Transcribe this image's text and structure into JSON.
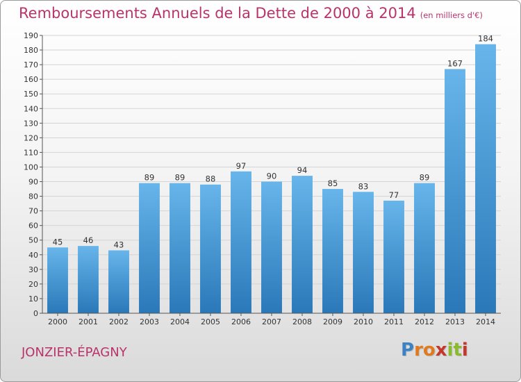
{
  "title": "Remboursements Annuels de la Dette de 2000 à 2014",
  "subtitle": "(en milliers d'€)",
  "town": "JONZIER-ÉPAGNY",
  "brand": {
    "letters": [
      "P",
      "r",
      "o",
      "x",
      "i",
      "t",
      "i"
    ],
    "colors": [
      "#3d83c4",
      "#e07a1f",
      "#e07a1f",
      "#c4372a",
      "#8bbb2a",
      "#8bbb2a",
      "#c4372a"
    ]
  },
  "colors": {
    "title": "#b8336a",
    "bar_top": "#67b5ea",
    "bar_bottom": "#2a78b8",
    "grid": "#d4d4d4"
  },
  "chart_data": {
    "type": "bar",
    "categories": [
      "2000",
      "2001",
      "2002",
      "2003",
      "2004",
      "2005",
      "2006",
      "2007",
      "2008",
      "2009",
      "2010",
      "2011",
      "2012",
      "2013",
      "2014"
    ],
    "values": [
      45,
      46,
      43,
      89,
      89,
      88,
      97,
      90,
      94,
      85,
      83,
      77,
      89,
      167,
      184
    ],
    "title": "Remboursements Annuels de la Dette de 2000 à 2014",
    "xlabel": "",
    "ylabel": "",
    "ylim": [
      0,
      190
    ],
    "yticks": [
      0,
      10,
      20,
      30,
      40,
      50,
      60,
      70,
      80,
      90,
      100,
      110,
      120,
      130,
      140,
      150,
      160,
      170,
      180,
      190
    ],
    "grid": true,
    "data_labels": true
  }
}
